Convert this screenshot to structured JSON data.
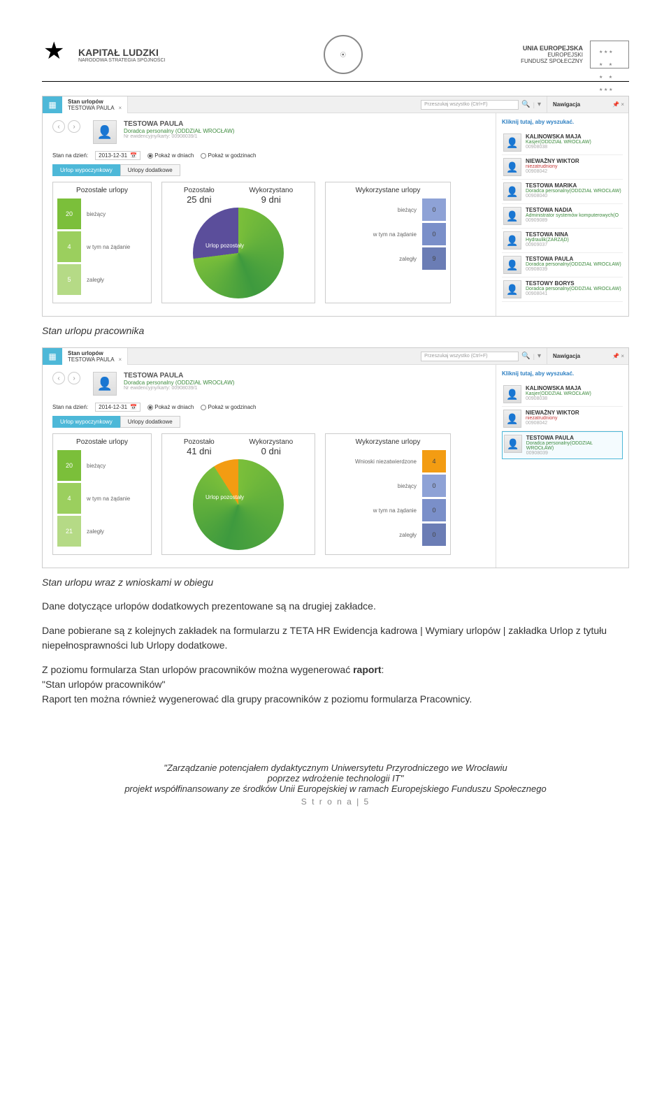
{
  "header": {
    "left_title": "KAPITAŁ LUDZKI",
    "left_sub": "NARODOWA STRATEGIA SPÓJNOŚCI",
    "right_line1": "UNIA EUROPEJSKA",
    "right_line2": "EUROPEJSKI",
    "right_line3": "FUNDUSZ SPOŁECZNY"
  },
  "shot1": {
    "tab_title": "Stan urlopów",
    "tab_sub": "TESTOWA PAULA",
    "search_placeholder": "Przeszukaj wszystko (Ctrl+F)",
    "nav_label": "Nawigacja",
    "person": {
      "name": "TESTOWA PAULA",
      "role": "Doradca personalny  (ODDZIAŁ WROCŁAW)",
      "id": "Nr ewidencyjny/karty:  00908039/1"
    },
    "filters": {
      "date_label": "Stan na dzień:",
      "date": "2013-12-31",
      "opt1": "Pokaż w dniach",
      "opt2": "Pokaż w godzinach"
    },
    "tabs2": {
      "a": "Urlop wypoczynkowy",
      "b": "Urlopy dodatkowe"
    },
    "left_panel": {
      "title": "Pozostałe urlopy",
      "rows": [
        {
          "val": "20",
          "label": "bieżący",
          "color": "#7bbf3a"
        },
        {
          "val": "4",
          "label": "w tym na żądanie",
          "color": "#9bcf5e"
        },
        {
          "val": "5",
          "label": "zaległy",
          "color": "#b5da86"
        }
      ]
    },
    "mid_panel": {
      "left_label": "Pozostało",
      "left_val": "25 dni",
      "right_label": "Wykorzystano",
      "right_val": "9 dni",
      "slice_label": "Urlop pozostały",
      "pie": {
        "remain_pct": 73,
        "remain_color1": "#7bbf3a",
        "remain_color2": "#3e9a3e",
        "used_color": "#5b4e9b"
      }
    },
    "right_panel": {
      "title": "Wykorzystane urlopy",
      "rows": [
        {
          "label": "bieżący",
          "val": "0",
          "color": "#8ea2d6"
        },
        {
          "label": "w tym na żądanie",
          "val": "0",
          "color": "#7a8fc9"
        },
        {
          "label": "zaległy",
          "val": "9",
          "color": "#6b7db5"
        }
      ]
    },
    "side_search": "Kliknij tutaj, aby wyszukać.",
    "people": [
      {
        "name": "KALINOWSKA MAJA",
        "role": "Kasjer(ODDZIAŁ WROCŁAW)",
        "role_color": "#3d8b3d",
        "id": "00908038"
      },
      {
        "name": "NIEWAŻNY WIKTOR",
        "role": "niezatrudniony",
        "role_color": "#c63a3a",
        "id": "00908042"
      },
      {
        "name": "TESTOWA MARIKA",
        "role": "Doradca personalny(ODDZIAŁ WROCŁAW)",
        "role_color": "#3d8b3d",
        "id": "00908040"
      },
      {
        "name": "TESTOWA NADIA",
        "role": "Administrator systemów komputerowych(O",
        "role_color": "#3d8b3d",
        "id": "00909089"
      },
      {
        "name": "TESTOWA NINA",
        "role": "Hydraulik(ZARZĄD)",
        "role_color": "#3d8b3d",
        "id": "00909037"
      },
      {
        "name": "TESTOWA PAULA",
        "role": "Doradca personalny(ODDZIAŁ WROCŁAW)",
        "role_color": "#3d8b3d",
        "id": "00908039"
      },
      {
        "name": "TESTOWY BORYS",
        "role": "Doradca personalny(ODDZIAŁ WROCŁAW)",
        "role_color": "#3d8b3d",
        "id": "00908041"
      }
    ]
  },
  "caption1": "Stan urlopu pracownika",
  "shot2": {
    "tab_title": "Stan urlopów",
    "tab_sub": "TESTOWA PAULA",
    "search_placeholder": "Przeszukaj wszystko (Ctrl+F)",
    "nav_label": "Nawigacja",
    "person": {
      "name": "TESTOWA PAULA",
      "role": "Doradca personalny  (ODDZIAŁ WROCŁAW)",
      "id": "Nr ewidencyjny/karty:  00908039/1"
    },
    "filters": {
      "date_label": "Stan na dzień:",
      "date": "2014-12-31",
      "opt1": "Pokaż w dniach",
      "opt2": "Pokaż w godzinach"
    },
    "tabs2": {
      "a": "Urlop wypoczynkowy",
      "b": "Urlopy dodatkowe"
    },
    "left_panel": {
      "title": "Pozostałe urlopy",
      "rows": [
        {
          "val": "20",
          "label": "bieżący",
          "color": "#7bbf3a"
        },
        {
          "val": "4",
          "label": "w tym na żądanie",
          "color": "#9bcf5e"
        },
        {
          "val": "21",
          "label": "zaległy",
          "color": "#b5da86"
        }
      ]
    },
    "mid_panel": {
      "left_label": "Pozostało",
      "left_val": "41 dni",
      "right_label": "Wykorzystano",
      "right_val": "0 dni",
      "slice_label": "Urlop pozostały",
      "pie": {
        "remain_pct": 91,
        "remain_color1": "#7bbf3a",
        "remain_color2": "#3e9a3e",
        "used_color": "#f39c12"
      }
    },
    "right_panel": {
      "title": "Wykorzystane urlopy",
      "rows": [
        {
          "label": "Wnioski niezatwierdzone",
          "val": "4",
          "color": "#f39c12"
        },
        {
          "label": "bieżący",
          "val": "0",
          "color": "#8ea2d6"
        },
        {
          "label": "w tym na żądanie",
          "val": "0",
          "color": "#7a8fc9"
        },
        {
          "label": "zaległy",
          "val": "0",
          "color": "#6b7db5"
        }
      ]
    },
    "side_search": "Kliknij tutaj, aby wyszukać.",
    "people": [
      {
        "name": "KALINOWSKA MAJA",
        "role": "Kasjer(ODDZIAŁ WROCŁAW)",
        "role_color": "#3d8b3d",
        "id": "00908038"
      },
      {
        "name": "NIEWAŻNY WIKTOR",
        "role": "niezatrudniony",
        "role_color": "#c63a3a",
        "id": "00908042"
      },
      {
        "name": "TESTOWA PAULA",
        "role": "Doradca personalny(ODDZIAŁ WROCŁAW)",
        "role_color": "#3d8b3d",
        "id": "00908039",
        "selected": true
      }
    ]
  },
  "caption2": "Stan urlopu wraz z wnioskami w obiegu",
  "para1": "Dane dotyczące urlopów dodatkowych prezentowane są na drugiej zakładce.",
  "para2": "Dane pobierane są z kolejnych zakładek na formularzu z TETA HR Ewidencja kadrowa | Wymiary urlopów | zakładka Urlop z tytułu niepełnosprawności lub Urlopy dodatkowe.",
  "para3a": "Z poziomu formularza Stan urlopów pracowników można wygenerować ",
  "para3_bold": "raport",
  "para3b": ":",
  "para4": "\"Stan urlopów pracowników\"",
  "para5": "Raport ten można również wygenerować dla grupy pracowników z poziomu formularza Pracownicy.",
  "footer": {
    "line1": "\"Zarządzanie potencjałem dydaktycznym Uniwersytetu Przyrodniczego we Wrocławiu",
    "line2": "poprzez wdrożenie technologii IT\"",
    "line3": "projekt współfinansowany ze środków Unii Europejskiej w ramach Europejskiego Funduszu Społecznego",
    "page": "S t r o n a  |  5"
  }
}
